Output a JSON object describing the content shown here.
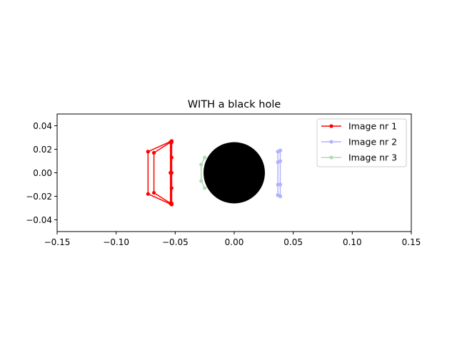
{
  "chart_data": {
    "type": "line",
    "title": "WITH a black hole",
    "xlabel": "",
    "ylabel": "",
    "xlim": [
      -0.15,
      0.15
    ],
    "ylim": [
      -0.05,
      0.05
    ],
    "xticks": [
      -0.15,
      -0.1,
      -0.05,
      0.0,
      0.05,
      0.1,
      0.15
    ],
    "xtick_labels": [
      "−0.15",
      "−0.10",
      "−0.05",
      "0.00",
      "0.05",
      "0.10",
      "0.15"
    ],
    "yticks": [
      0.04,
      0.02,
      0.0,
      -0.02,
      -0.04
    ],
    "ytick_labels": [
      "0.04",
      "0.02",
      "0.00",
      "−0.02",
      "−0.04"
    ],
    "grid": false,
    "legend_position": "upper right",
    "legend": [
      "Image nr 1",
      "Image nr 2",
      "Image nr 3"
    ],
    "black_hole": {
      "center": [
        0.0,
        0.0
      ],
      "radius": 0.026,
      "color": "#000000"
    },
    "series": [
      {
        "name": "Image nr 1",
        "color": "#ff0000",
        "opacity": 1.0,
        "segments": [
          [
            [
              -0.073,
              0.018
            ],
            [
              -0.073,
              -0.018
            ],
            [
              -0.053,
              -0.027
            ],
            [
              -0.053,
              0.027
            ],
            [
              -0.073,
              0.018
            ]
          ],
          [
            [
              -0.068,
              0.017
            ],
            [
              -0.068,
              -0.017
            ],
            [
              -0.054,
              -0.026
            ],
            [
              -0.054,
              0.026
            ],
            [
              -0.068,
              0.017
            ]
          ],
          [
            [
              -0.053,
              0.027
            ],
            [
              -0.053,
              0.026
            ],
            [
              -0.053,
              0.013
            ],
            [
              -0.053,
              0.0
            ],
            [
              -0.053,
              -0.013
            ],
            [
              -0.053,
              -0.026
            ],
            [
              -0.053,
              -0.027
            ]
          ],
          [
            [
              -0.054,
              0.026
            ],
            [
              -0.054,
              0.0
            ],
            [
              -0.054,
              -0.026
            ]
          ]
        ]
      },
      {
        "name": "Image nr 2",
        "color": "#0000ff",
        "opacity": 0.3,
        "segments": [
          [
            [
              0.037,
              0.018
            ],
            [
              0.037,
              0.009
            ],
            [
              0.037,
              -0.01
            ],
            [
              0.037,
              -0.019
            ]
          ],
          [
            [
              0.039,
              0.019
            ],
            [
              0.039,
              0.01
            ],
            [
              0.039,
              -0.01
            ],
            [
              0.039,
              -0.02
            ]
          ],
          [
            [
              0.037,
              0.018
            ],
            [
              0.039,
              0.019
            ]
          ],
          [
            [
              0.037,
              -0.019
            ],
            [
              0.039,
              -0.02
            ]
          ]
        ]
      },
      {
        "name": "Image nr 3",
        "color": "#008000",
        "opacity": 0.3,
        "segments": [
          [
            [
              -0.025,
              0.013
            ],
            [
              -0.028,
              0.007
            ],
            [
              -0.028,
              -0.007
            ],
            [
              -0.025,
              -0.013
            ]
          ]
        ]
      }
    ]
  }
}
